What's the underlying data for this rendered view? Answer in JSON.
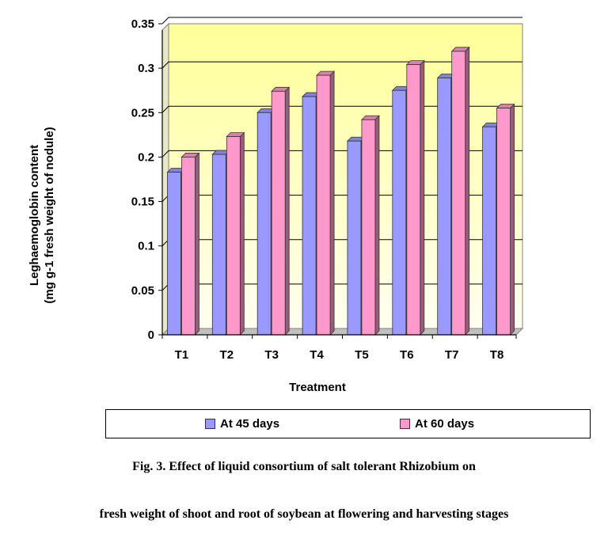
{
  "chart_data": {
    "type": "bar",
    "categories": [
      "T1",
      "T2",
      "T3",
      "T4",
      "T5",
      "T6",
      "T7",
      "T8"
    ],
    "series": [
      {
        "name": "At 45 days",
        "values": [
          0.183,
          0.203,
          0.25,
          0.268,
          0.218,
          0.275,
          0.289,
          0.234
        ],
        "color": "#9999ff"
      },
      {
        "name": "At 60 days",
        "values": [
          0.2,
          0.223,
          0.274,
          0.292,
          0.242,
          0.304,
          0.319,
          0.255
        ],
        "color": "#ff99cc"
      }
    ],
    "xlabel": "Treatment",
    "ylabel_line1": "Leghaemoglobin content",
    "ylabel_line2": "(mg g-1 fresh weight of nodule)",
    "ylim": [
      0,
      0.35
    ],
    "yticks": [
      "0",
      "0.05",
      "0.1",
      "0.15",
      "0.2",
      "0.25",
      "0.3",
      "0.35"
    ],
    "grid": true,
    "plot_background": [
      "#fffff0",
      "#ffff99"
    ],
    "legend_position": "bottom"
  },
  "caption": {
    "line1": "Fig. 3. Effect of liquid consortium of salt tolerant Rhizobium on",
    "line2": "fresh weight of shoot and root of soybean at flowering and harvesting stages"
  }
}
